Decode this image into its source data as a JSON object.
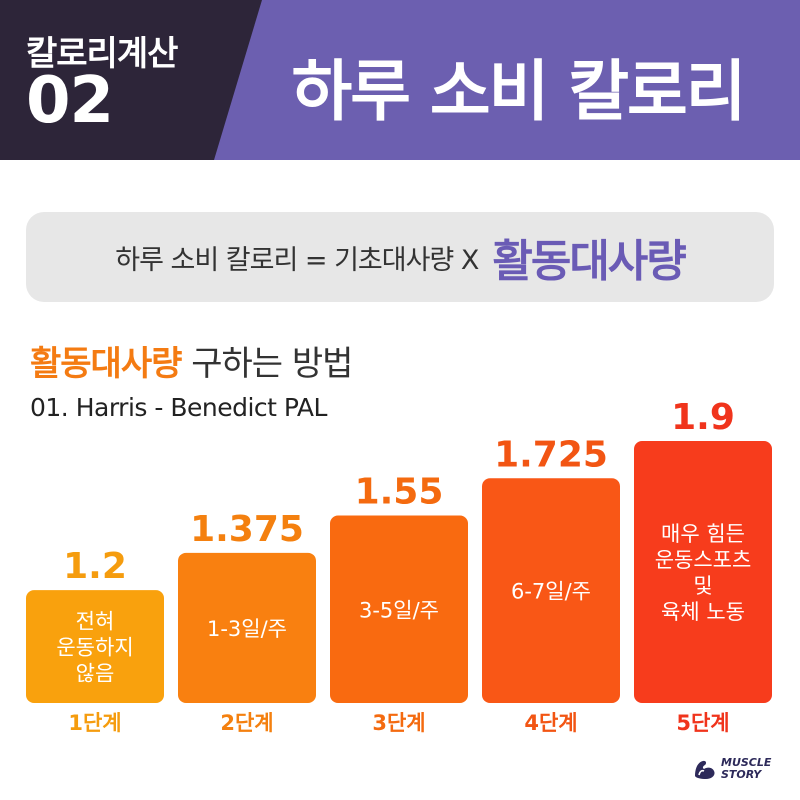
{
  "header": {
    "series_label": "칼로리계산",
    "series_number": "02",
    "title": "하루 소비 칼로리"
  },
  "formula": {
    "text": "하루 소비 칼로리 = 기초대사량 X",
    "highlight": "활동대사량"
  },
  "section": {
    "highlight": "활동대사량",
    "rest": "구하는 방법"
  },
  "method_label": "01. Harris - Benedict PAL",
  "chart_data": {
    "type": "bar",
    "title": "",
    "xlabel": "",
    "ylabel": "",
    "categories": [
      "1단계",
      "2단계",
      "3단계",
      "4단계",
      "5단계"
    ],
    "value_labels": [
      "1.2",
      "1.375",
      "1.55",
      "1.725",
      "1.9"
    ],
    "values": [
      1.2,
      1.375,
      1.55,
      1.725,
      1.9
    ],
    "descriptions": [
      [
        "전혀",
        "운동하지",
        "않음"
      ],
      [
        "1-3일/주"
      ],
      [
        "3-5일/주"
      ],
      [
        "6-7일/주"
      ],
      [
        "매우 힘든",
        "운동스포츠",
        "및",
        "육체 노동"
      ]
    ],
    "colors": [
      "#f9a10d",
      "#f98010",
      "#f96a10",
      "#f95716",
      "#f73c1c"
    ],
    "label_colors": [
      "#f59c0e",
      "#f4800f",
      "#f46a0f",
      "#f25513",
      "#f0341c"
    ],
    "ylim": [
      0,
      1.9
    ],
    "grid": false,
    "legend": "none"
  },
  "logo": {
    "line1": "MUSCLE",
    "line2": "STORY",
    "icon": "flexed-arm-icon",
    "color": "#2d2a5a"
  }
}
